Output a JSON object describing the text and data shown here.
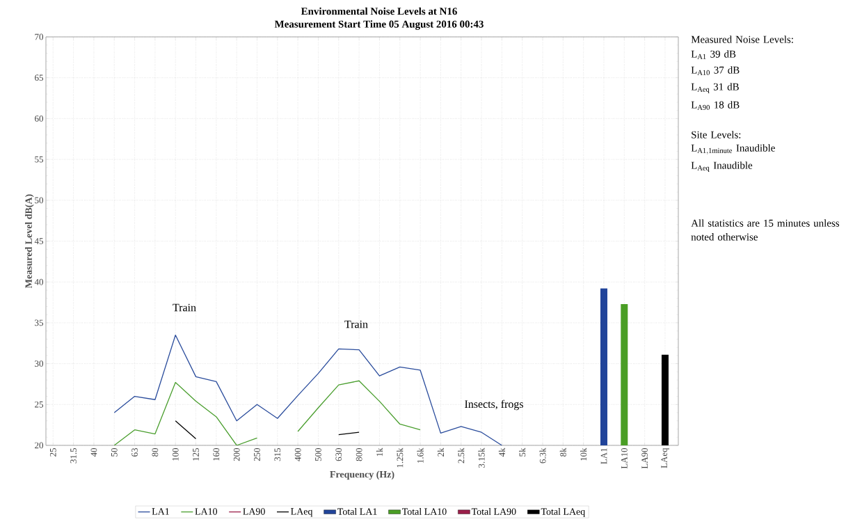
{
  "chart_data": {
    "type": "line",
    "title": "Environmental Noise Levels at N16",
    "subtitle": "Measurement Start Time 05 August 2016 00:43",
    "xlabel": "Frequency (Hz)",
    "ylabel": "Measured Level dB(A)",
    "categories": [
      "25",
      "31.5",
      "40",
      "50",
      "63",
      "80",
      "100",
      "125",
      "160",
      "200",
      "250",
      "315",
      "400",
      "500",
      "630",
      "800",
      "1k",
      "1.25k",
      "1.6k",
      "2k",
      "2.5k",
      "3.15k",
      "4k",
      "5k",
      "6.3k",
      "8k",
      "10k",
      "LA1",
      "LA10",
      "LA90",
      "LAeq"
    ],
    "series": [
      {
        "name": "LA1",
        "color": "#2a4c9c",
        "values": [
          null,
          null,
          null,
          24.0,
          26.0,
          25.6,
          33.5,
          28.4,
          27.8,
          23.0,
          25.0,
          23.3,
          26.1,
          28.8,
          31.8,
          31.7,
          28.5,
          29.6,
          29.2,
          21.5,
          22.3,
          21.6,
          20.0,
          null,
          null,
          null,
          null,
          null,
          null,
          null,
          null
        ]
      },
      {
        "name": "LA10",
        "color": "#4a9e2e",
        "values": [
          null,
          null,
          null,
          20.0,
          21.9,
          21.4,
          27.7,
          25.4,
          23.5,
          20.0,
          20.9,
          null,
          21.7,
          24.6,
          27.4,
          27.9,
          25.4,
          22.6,
          21.9,
          null,
          null,
          null,
          null,
          null,
          null,
          null,
          null,
          null,
          null,
          null,
          null
        ]
      },
      {
        "name": "LA90",
        "color": "#9b1f4a",
        "values": [
          null,
          null,
          null,
          null,
          null,
          null,
          null,
          null,
          null,
          null,
          null,
          null,
          null,
          null,
          null,
          null,
          null,
          null,
          null,
          null,
          null,
          null,
          null,
          null,
          null,
          null,
          null,
          null,
          null,
          null,
          null
        ]
      },
      {
        "name": "LAeq",
        "color": "#000000",
        "values": [
          null,
          null,
          null,
          null,
          null,
          null,
          23.0,
          20.8,
          null,
          null,
          null,
          null,
          null,
          null,
          21.3,
          21.6,
          null,
          null,
          null,
          null,
          null,
          null,
          null,
          null,
          null,
          null,
          null,
          null,
          null,
          null,
          null
        ]
      },
      {
        "name": "Total LA1",
        "type": "bar",
        "color": "#21449a",
        "values": [
          null,
          null,
          null,
          null,
          null,
          null,
          null,
          null,
          null,
          null,
          null,
          null,
          null,
          null,
          null,
          null,
          null,
          null,
          null,
          null,
          null,
          null,
          null,
          null,
          null,
          null,
          null,
          39.2,
          null,
          null,
          null
        ]
      },
      {
        "name": "Total LA10",
        "type": "bar",
        "color": "#4a9e25",
        "values": [
          null,
          null,
          null,
          null,
          null,
          null,
          null,
          null,
          null,
          null,
          null,
          null,
          null,
          null,
          null,
          null,
          null,
          null,
          null,
          null,
          null,
          null,
          null,
          null,
          null,
          null,
          null,
          null,
          37.3,
          null,
          null
        ]
      },
      {
        "name": "Total LA90",
        "type": "bar",
        "color": "#9b1f4a",
        "values": [
          null,
          null,
          null,
          null,
          null,
          null,
          null,
          null,
          null,
          null,
          null,
          null,
          null,
          null,
          null,
          null,
          null,
          null,
          null,
          null,
          null,
          null,
          null,
          null,
          null,
          null,
          null,
          null,
          null,
          null,
          null
        ]
      },
      {
        "name": "Total LAeq",
        "type": "bar",
        "color": "#000000",
        "values": [
          null,
          null,
          null,
          null,
          null,
          null,
          null,
          null,
          null,
          null,
          null,
          null,
          null,
          null,
          null,
          null,
          null,
          null,
          null,
          null,
          null,
          null,
          null,
          null,
          null,
          null,
          null,
          null,
          null,
          null,
          31.1
        ]
      }
    ],
    "ylim": [
      20,
      70
    ],
    "yticks": [
      20,
      25,
      30,
      35,
      40,
      45,
      50,
      55,
      60,
      65,
      70
    ],
    "grid": true,
    "legend": "bottom",
    "annotations": [
      "Train",
      "Train",
      "Insects, frogs",
      "Measured Noise Levels:",
      "L$_{A1}$ 39 dB",
      "L$_{A10}$ 37 dB",
      "L$_{Aeq}$ 31 dB",
      "L$_{A90}$ 18 dB",
      "Site Levels:",
      "\\mathrm{L_{A1,1minute}\\ Inaudible}",
      "L$_{Aeq}$ Inaudible",
      "All statistics are 15 minutes unless noted otherwise"
    ]
  }
}
